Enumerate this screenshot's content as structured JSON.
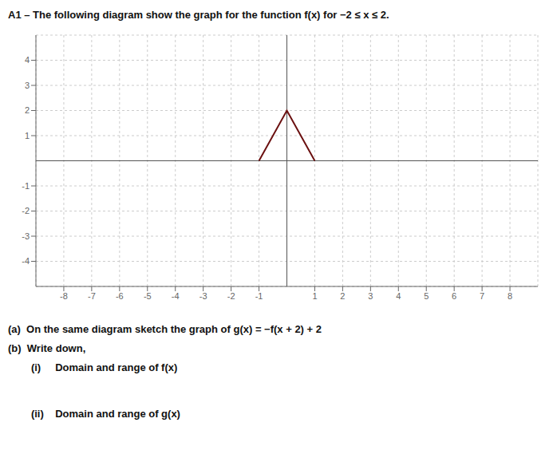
{
  "chart_data": {
    "type": "line",
    "title": "A1 – The following diagram show the graph for the function f(x) for −2 ≤ x ≤ 2.",
    "x": [
      -1,
      0,
      1
    ],
    "values": [
      0,
      2,
      0
    ],
    "color": "#6b1010",
    "xlim": [
      -9,
      9
    ],
    "ylim": [
      -5,
      5
    ],
    "xticks": [
      -8,
      -7,
      -6,
      -5,
      -4,
      -3,
      -2,
      -1,
      1,
      2,
      3,
      4,
      5,
      6,
      7,
      8
    ],
    "yticks": [
      -4,
      -3,
      -2,
      -1,
      1,
      2,
      3,
      4
    ],
    "grid": true,
    "annotations": [
      "(a)  On the same diagram sketch the graph of g(x) = −f(x + 2) + 2",
      "(b)  Write down,",
      "        (i)     Domain and range of f(x)",
      "        (ii)    Domain and range of g(x)"
    ]
  }
}
